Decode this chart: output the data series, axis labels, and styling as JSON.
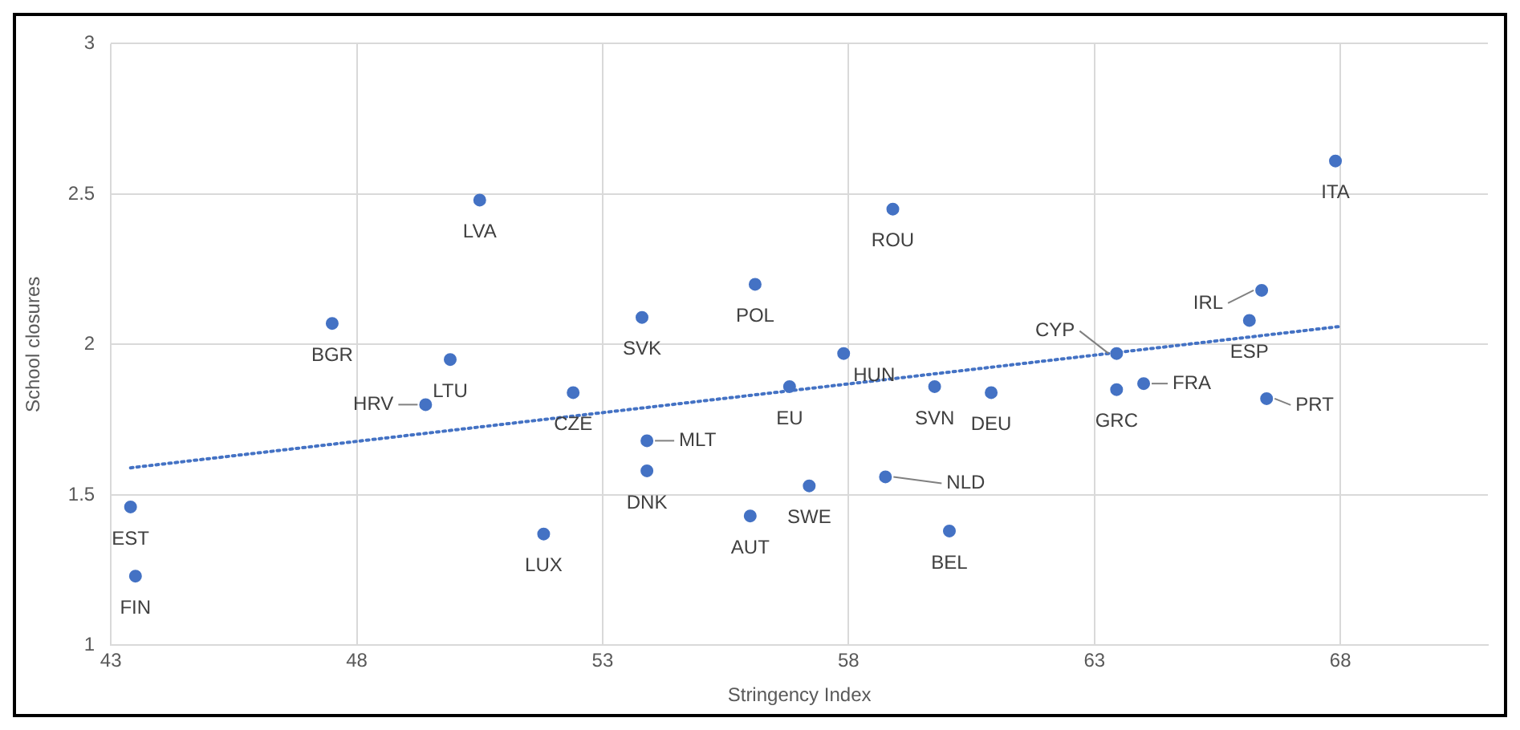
{
  "chart_data": {
    "type": "scatter",
    "xlabel": "Stringency Index",
    "ylabel": "School closures",
    "xlim": [
      43,
      71
    ],
    "ylim": [
      1,
      3
    ],
    "xticks": [
      43,
      48,
      53,
      58,
      63,
      68
    ],
    "yticks": [
      1,
      1.5,
      2,
      2.5,
      3
    ],
    "grid": true,
    "legend": false,
    "marker": "circle",
    "series": [
      {
        "color": "#4472c4",
        "x": [
          43.4,
          43.5,
          47.5,
          50.5,
          49.9,
          49.4,
          51.8,
          52.4,
          53.8,
          53.9,
          53.9,
          56.1,
          56.0,
          56.8,
          57.2,
          57.9,
          58.9,
          58.75,
          59.75,
          60.05,
          60.9,
          63.45,
          63.45,
          64.0,
          66.15,
          66.4,
          66.5,
          67.9
        ],
        "values": [
          1.46,
          1.23,
          2.07,
          2.48,
          1.95,
          1.8,
          1.37,
          1.84,
          2.09,
          1.68,
          1.58,
          2.2,
          1.43,
          1.86,
          1.53,
          1.97,
          2.45,
          1.56,
          1.86,
          1.38,
          1.84,
          1.97,
          1.85,
          1.87,
          2.08,
          2.18,
          1.82,
          2.61
        ]
      },
      {
        "type": "line",
        "color": "#4472c4",
        "line_style": "dotted",
        "marker": "none",
        "x": [
          43.4,
          68
        ],
        "values": [
          1.59,
          2.06
        ]
      }
    ],
    "annotations": [
      {
        "text": "EST",
        "x": 43.4,
        "y": 1.46
      },
      {
        "text": "FIN",
        "x": 43.5,
        "y": 1.23
      },
      {
        "text": "BGR",
        "x": 47.5,
        "y": 2.07
      },
      {
        "text": "LVA",
        "x": 50.5,
        "y": 2.48
      },
      {
        "text": "LTU",
        "x": 49.9,
        "y": 1.95
      },
      {
        "text": "HRV",
        "x": 49.4,
        "y": 1.8
      },
      {
        "text": "LUX",
        "x": 51.8,
        "y": 1.37
      },
      {
        "text": "CZE",
        "x": 52.4,
        "y": 1.84
      },
      {
        "text": "SVK",
        "x": 53.8,
        "y": 2.09
      },
      {
        "text": "MLT",
        "x": 53.9,
        "y": 1.68
      },
      {
        "text": "DNK",
        "x": 53.9,
        "y": 1.58
      },
      {
        "text": "POL",
        "x": 56.1,
        "y": 2.2
      },
      {
        "text": "AUT",
        "x": 56.0,
        "y": 1.43
      },
      {
        "text": "EU",
        "x": 56.8,
        "y": 1.86
      },
      {
        "text": "SWE",
        "x": 57.2,
        "y": 1.53
      },
      {
        "text": "HUN",
        "x": 57.9,
        "y": 1.97
      },
      {
        "text": "ROU",
        "x": 58.9,
        "y": 2.45
      },
      {
        "text": "NLD",
        "x": 58.75,
        "y": 1.56
      },
      {
        "text": "SVN",
        "x": 59.75,
        "y": 1.86
      },
      {
        "text": "BEL",
        "x": 60.05,
        "y": 1.38
      },
      {
        "text": "DEU",
        "x": 60.9,
        "y": 1.84
      },
      {
        "text": "CYP",
        "x": 63.45,
        "y": 1.97
      },
      {
        "text": "GRC",
        "x": 63.45,
        "y": 1.85
      },
      {
        "text": "FRA",
        "x": 64.0,
        "y": 1.87
      },
      {
        "text": "ESP",
        "x": 66.15,
        "y": 2.08
      },
      {
        "text": "IRL",
        "x": 66.4,
        "y": 2.18
      },
      {
        "text": "PRT",
        "x": 66.5,
        "y": 1.82
      },
      {
        "text": "ITA",
        "x": 67.9,
        "y": 2.61
      }
    ]
  }
}
